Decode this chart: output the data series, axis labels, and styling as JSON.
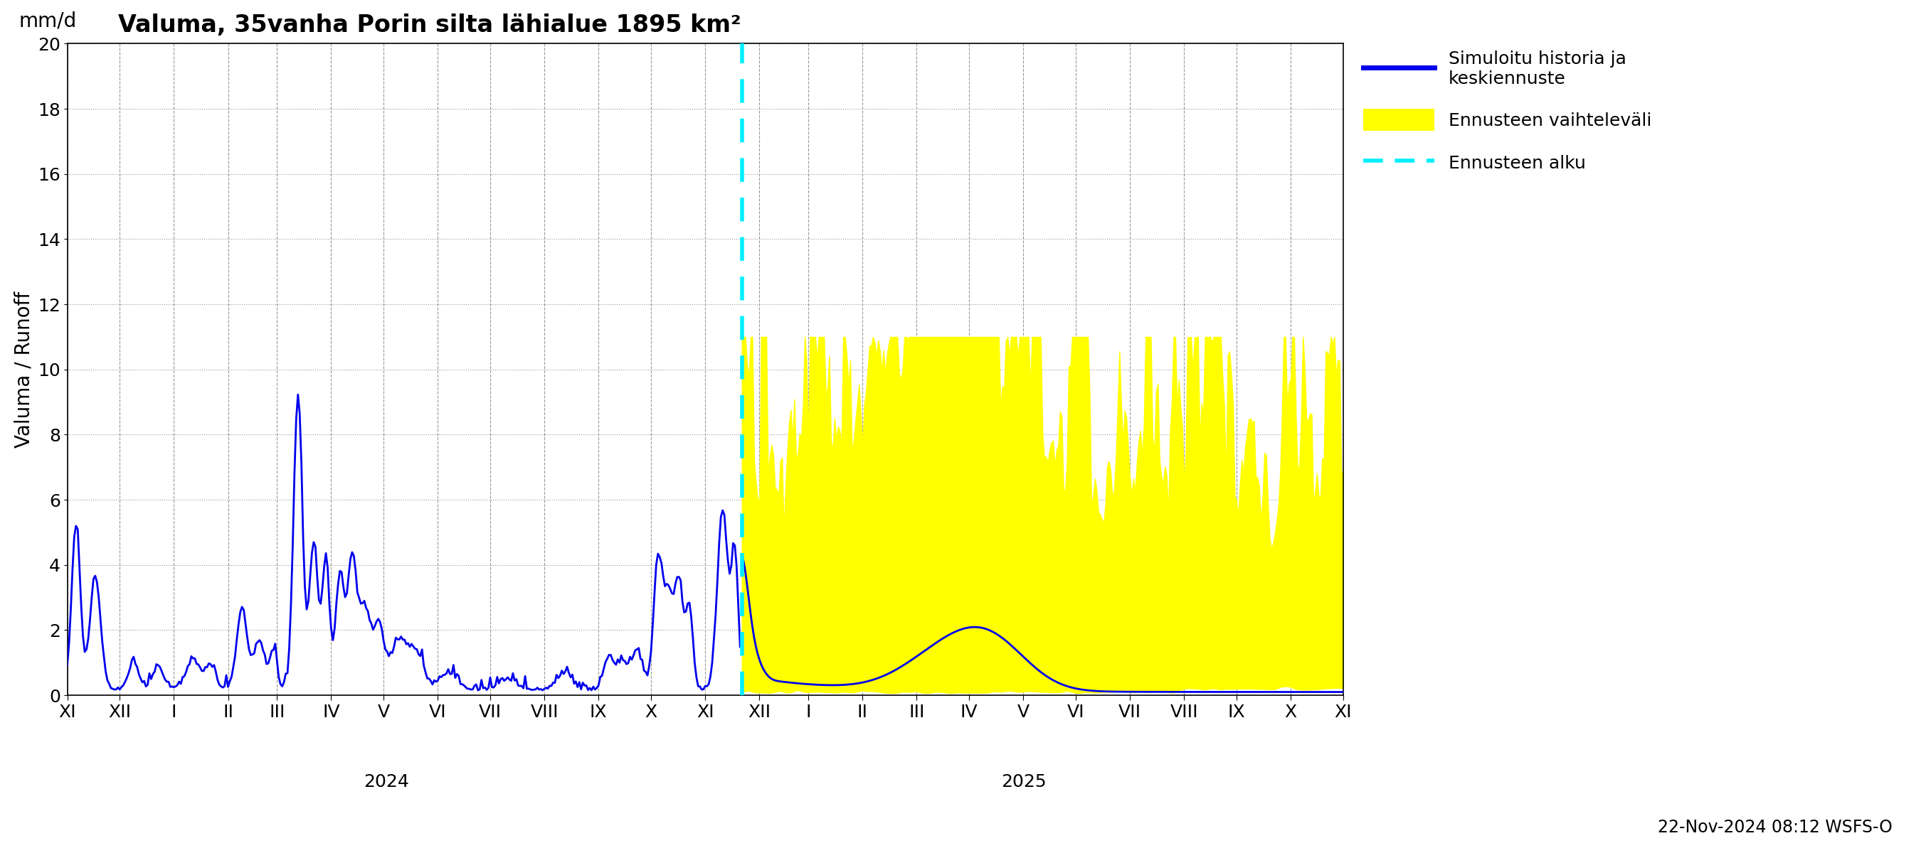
{
  "title": "Valuma, 35vanha Porin silta lähialue 1895 km²",
  "ylabel_top": "mm/d",
  "ylabel_main": "Valuma / Runoff",
  "background_color": "#ffffff",
  "plot_bg_color": "#ffffff",
  "grid_color_h": "#999999",
  "grid_color_v": "#999999",
  "hist_line_color": "#0000ee",
  "forecast_fill_color": "#ffff00",
  "forecast_line_color": "#0000ee",
  "cyan_line_color": "#00eeff",
  "ylim": [
    0,
    20
  ],
  "yticks": [
    0,
    2,
    4,
    6,
    8,
    10,
    12,
    14,
    16,
    18,
    20
  ],
  "legend_label_1": "Simuloitu historia ja\nkeskiennuste",
  "legend_label_2": "Ennusteen vaihteleväli",
  "legend_label_3": "Ennusteen alku",
  "timestamp_text": "22-Nov-2024 08:12 WSFS-O",
  "title_fontsize": 24,
  "axis_fontsize": 20,
  "tick_fontsize": 18,
  "legend_fontsize": 18
}
